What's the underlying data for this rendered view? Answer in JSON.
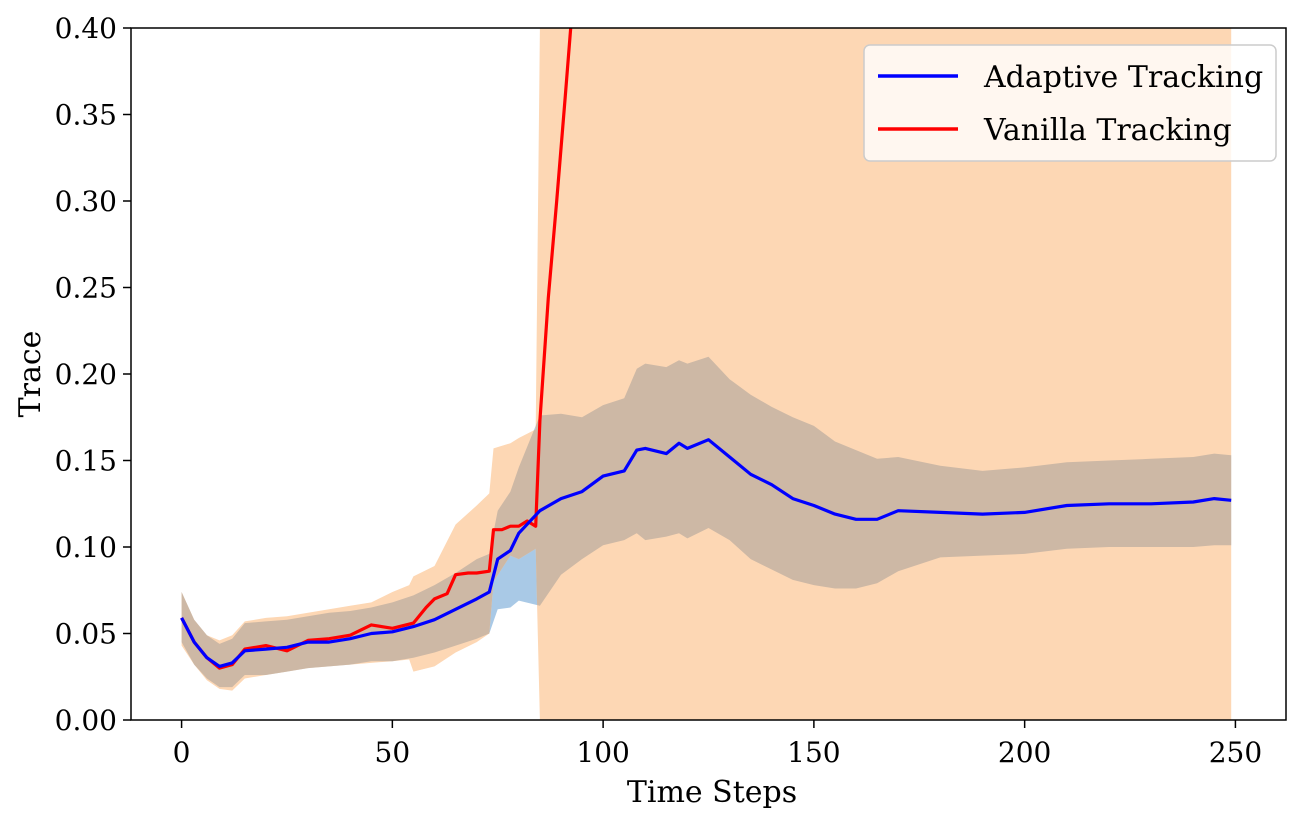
{
  "chart_data": {
    "type": "line",
    "title": "",
    "xlabel": "Time Steps",
    "ylabel": "Trace",
    "xlim": [
      -12,
      262
    ],
    "ylim": [
      0.0,
      0.4
    ],
    "xticks": [
      0,
      50,
      100,
      150,
      200,
      250
    ],
    "xtick_labels": [
      "0",
      "50",
      "100",
      "150",
      "200",
      "250"
    ],
    "yticks": [
      0.0,
      0.05,
      0.1,
      0.15,
      0.2,
      0.25,
      0.3,
      0.35,
      0.4
    ],
    "ytick_labels": [
      "0.00",
      "0.05",
      "0.10",
      "0.15",
      "0.20",
      "0.25",
      "0.30",
      "0.35",
      "0.40"
    ],
    "grid": false,
    "legend_position": "top-right",
    "series": [
      {
        "name": "Adaptive Tracking",
        "color": "#0000ff",
        "band_color": "#a9c9e6",
        "x": [
          0,
          3,
          6,
          9,
          12,
          15,
          20,
          25,
          30,
          35,
          40,
          45,
          50,
          55,
          60,
          65,
          70,
          73,
          75,
          78,
          80,
          85,
          90,
          95,
          100,
          105,
          108,
          110,
          115,
          118,
          120,
          125,
          130,
          135,
          140,
          145,
          150,
          155,
          160,
          165,
          170,
          180,
          190,
          200,
          210,
          220,
          230,
          240,
          245,
          249
        ],
        "values": [
          0.059,
          0.045,
          0.036,
          0.031,
          0.033,
          0.04,
          0.041,
          0.042,
          0.045,
          0.045,
          0.047,
          0.05,
          0.051,
          0.054,
          0.058,
          0.064,
          0.07,
          0.074,
          0.093,
          0.098,
          0.108,
          0.121,
          0.128,
          0.132,
          0.141,
          0.144,
          0.156,
          0.157,
          0.154,
          0.16,
          0.157,
          0.162,
          0.152,
          0.142,
          0.136,
          0.128,
          0.124,
          0.119,
          0.116,
          0.116,
          0.121,
          0.12,
          0.119,
          0.12,
          0.124,
          0.125,
          0.125,
          0.126,
          0.128,
          0.127
        ],
        "lower": [
          0.045,
          0.032,
          0.024,
          0.019,
          0.019,
          0.026,
          0.026,
          0.028,
          0.03,
          0.031,
          0.032,
          0.034,
          0.034,
          0.036,
          0.039,
          0.043,
          0.047,
          0.05,
          0.064,
          0.065,
          0.069,
          0.066,
          0.084,
          0.093,
          0.101,
          0.104,
          0.108,
          0.104,
          0.106,
          0.108,
          0.105,
          0.111,
          0.104,
          0.093,
          0.087,
          0.081,
          0.078,
          0.076,
          0.076,
          0.079,
          0.086,
          0.094,
          0.095,
          0.096,
          0.099,
          0.1,
          0.1,
          0.1,
          0.101,
          0.101
        ],
        "upper": [
          0.074,
          0.058,
          0.049,
          0.044,
          0.047,
          0.056,
          0.057,
          0.058,
          0.06,
          0.062,
          0.063,
          0.065,
          0.068,
          0.072,
          0.078,
          0.085,
          0.093,
          0.096,
          0.121,
          0.132,
          0.146,
          0.176,
          0.177,
          0.175,
          0.182,
          0.186,
          0.203,
          0.206,
          0.204,
          0.208,
          0.206,
          0.21,
          0.197,
          0.188,
          0.181,
          0.175,
          0.17,
          0.161,
          0.156,
          0.151,
          0.152,
          0.147,
          0.144,
          0.146,
          0.149,
          0.15,
          0.151,
          0.152,
          0.154,
          0.153
        ]
      },
      {
        "name": "Vanilla Tracking",
        "color": "#ff0000",
        "band_color": "#fdd7b4",
        "x": [
          0,
          3,
          6,
          9,
          12,
          15,
          20,
          25,
          30,
          35,
          40,
          45,
          50,
          55,
          58,
          60,
          63,
          65,
          68,
          70,
          73,
          74,
          76,
          78,
          80,
          82,
          84,
          85,
          87,
          89,
          91,
          92.3
        ],
        "values": [
          0.059,
          0.045,
          0.036,
          0.03,
          0.032,
          0.041,
          0.043,
          0.04,
          0.046,
          0.047,
          0.049,
          0.055,
          0.053,
          0.056,
          0.065,
          0.07,
          0.073,
          0.084,
          0.085,
          0.085,
          0.086,
          0.11,
          0.11,
          0.112,
          0.112,
          0.115,
          0.112,
          0.173,
          0.244,
          0.3,
          0.36,
          0.4
        ],
        "band_x": [
          0,
          3,
          6,
          9,
          12,
          15,
          20,
          25,
          30,
          35,
          40,
          45,
          50,
          54,
          55,
          60,
          65,
          70,
          73,
          74,
          78,
          80,
          84,
          85,
          249
        ],
        "band_lower": [
          0.043,
          0.032,
          0.023,
          0.018,
          0.017,
          0.024,
          0.026,
          0.028,
          0.03,
          0.031,
          0.032,
          0.033,
          0.034,
          0.035,
          0.028,
          0.031,
          0.039,
          0.045,
          0.05,
          0.08,
          0.095,
          0.093,
          0.099,
          0.0,
          0.0
        ],
        "band_upper": [
          0.074,
          0.058,
          0.049,
          0.046,
          0.049,
          0.057,
          0.059,
          0.06,
          0.062,
          0.064,
          0.066,
          0.068,
          0.074,
          0.078,
          0.083,
          0.089,
          0.113,
          0.124,
          0.131,
          0.157,
          0.16,
          0.163,
          0.168,
          0.4,
          0.4
        ]
      }
    ]
  }
}
